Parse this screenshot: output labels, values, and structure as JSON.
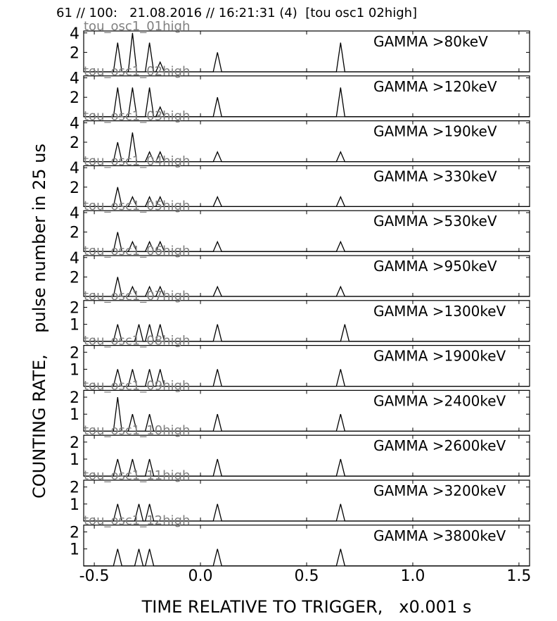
{
  "header": "61 // 100:   21.08.2016 // 16:21:31 (4)  [tou osc1 02high]",
  "xlabel": "TIME RELATIVE TO TRIGGER,   x0.001 s",
  "ylabel": "COUNTING RATE,    pulse number in 25 us",
  "xticks": [
    "-0.5",
    "0.0",
    "0.5",
    "1.0",
    "1.5"
  ],
  "xtick_values": [
    -0.5,
    0.0,
    0.5,
    1.0,
    1.5
  ],
  "chart_data": {
    "type": "line",
    "xlim": [
      -0.55,
      1.55
    ],
    "grid": false,
    "series": [
      {
        "name": "GAMMA >80keV",
        "overlay": "tou_osc1_01high",
        "ylim": [
          0,
          4.2
        ],
        "yticks": [
          2,
          4
        ],
        "peaks": [
          [
            -0.39,
            3
          ],
          [
            -0.32,
            4
          ],
          [
            -0.24,
            3
          ],
          [
            -0.19,
            1
          ],
          [
            0.08,
            2
          ],
          [
            0.66,
            3
          ]
        ]
      },
      {
        "name": "GAMMA >120keV",
        "overlay": "tou_osc1_02high",
        "ylim": [
          0,
          4.2
        ],
        "yticks": [
          2,
          4
        ],
        "peaks": [
          [
            -0.39,
            3
          ],
          [
            -0.32,
            3
          ],
          [
            -0.24,
            3
          ],
          [
            -0.19,
            1
          ],
          [
            0.08,
            2
          ],
          [
            0.66,
            3
          ]
        ]
      },
      {
        "name": "GAMMA >190keV",
        "overlay": "tou_osc1_03high",
        "ylim": [
          0,
          4.2
        ],
        "yticks": [
          2,
          4
        ],
        "peaks": [
          [
            -0.39,
            2
          ],
          [
            -0.32,
            3
          ],
          [
            -0.24,
            1
          ],
          [
            -0.19,
            1
          ],
          [
            0.08,
            1
          ],
          [
            0.66,
            1
          ]
        ]
      },
      {
        "name": "GAMMA >330keV",
        "overlay": "tou_osc1_04high",
        "ylim": [
          0,
          4.2
        ],
        "yticks": [
          2,
          4
        ],
        "peaks": [
          [
            -0.39,
            2
          ],
          [
            -0.32,
            1
          ],
          [
            -0.24,
            1
          ],
          [
            -0.19,
            1
          ],
          [
            0.08,
            1
          ],
          [
            0.66,
            1
          ]
        ]
      },
      {
        "name": "GAMMA >530keV",
        "overlay": "tou_osc1_05high",
        "ylim": [
          0,
          4.2
        ],
        "yticks": [
          2,
          4
        ],
        "peaks": [
          [
            -0.39,
            2
          ],
          [
            -0.32,
            1
          ],
          [
            -0.24,
            1
          ],
          [
            -0.19,
            1
          ],
          [
            0.08,
            1
          ],
          [
            0.66,
            1
          ]
        ]
      },
      {
        "name": "GAMMA >950keV",
        "overlay": "tou_osc1_06high",
        "ylim": [
          0,
          4.2
        ],
        "yticks": [
          2,
          4
        ],
        "peaks": [
          [
            -0.39,
            2
          ],
          [
            -0.32,
            1
          ],
          [
            -0.24,
            1
          ],
          [
            -0.19,
            1
          ],
          [
            0.08,
            1
          ],
          [
            0.66,
            1
          ]
        ]
      },
      {
        "name": "GAMMA >1300keV",
        "overlay": "tou_osc1_07high",
        "ylim": [
          0,
          2.4
        ],
        "yticks": [
          1,
          2
        ],
        "peaks": [
          [
            -0.39,
            1
          ],
          [
            -0.29,
            1
          ],
          [
            -0.24,
            1
          ],
          [
            -0.19,
            1
          ],
          [
            0.08,
            1
          ],
          [
            0.68,
            1
          ]
        ]
      },
      {
        "name": "GAMMA >1900keV",
        "overlay": "tou_osc1_08high",
        "ylim": [
          0,
          2.4
        ],
        "yticks": [
          1,
          2
        ],
        "peaks": [
          [
            -0.39,
            1
          ],
          [
            -0.32,
            1
          ],
          [
            -0.24,
            1
          ],
          [
            -0.19,
            1
          ],
          [
            0.08,
            1
          ],
          [
            0.66,
            1
          ]
        ]
      },
      {
        "name": "GAMMA >2400keV",
        "overlay": "tou_osc1_09high",
        "ylim": [
          0,
          2.4
        ],
        "yticks": [
          1,
          2
        ],
        "peaks": [
          [
            -0.39,
            2
          ],
          [
            -0.32,
            1
          ],
          [
            -0.24,
            1
          ],
          [
            0.08,
            1
          ],
          [
            0.66,
            1
          ]
        ]
      },
      {
        "name": "GAMMA >2600keV",
        "overlay": "tou_osc1_10high",
        "ylim": [
          0,
          2.4
        ],
        "yticks": [
          1,
          2
        ],
        "peaks": [
          [
            -0.39,
            1
          ],
          [
            -0.32,
            1
          ],
          [
            -0.24,
            1
          ],
          [
            0.08,
            1
          ],
          [
            0.66,
            1
          ]
        ]
      },
      {
        "name": "GAMMA >3200keV",
        "overlay": "tou_osc1_11high",
        "ylim": [
          0,
          2.4
        ],
        "yticks": [
          1,
          2
        ],
        "peaks": [
          [
            -0.39,
            1
          ],
          [
            -0.29,
            1
          ],
          [
            -0.24,
            1
          ],
          [
            0.08,
            1
          ],
          [
            0.66,
            1
          ]
        ]
      },
      {
        "name": "GAMMA >3800keV",
        "overlay": "tou_osc1_12high",
        "ylim": [
          0,
          2.4
        ],
        "yticks": [
          1,
          2
        ],
        "peaks": [
          [
            -0.39,
            1
          ],
          [
            -0.29,
            1
          ],
          [
            -0.24,
            1
          ],
          [
            0.08,
            1
          ],
          [
            0.66,
            1
          ]
        ]
      }
    ]
  }
}
